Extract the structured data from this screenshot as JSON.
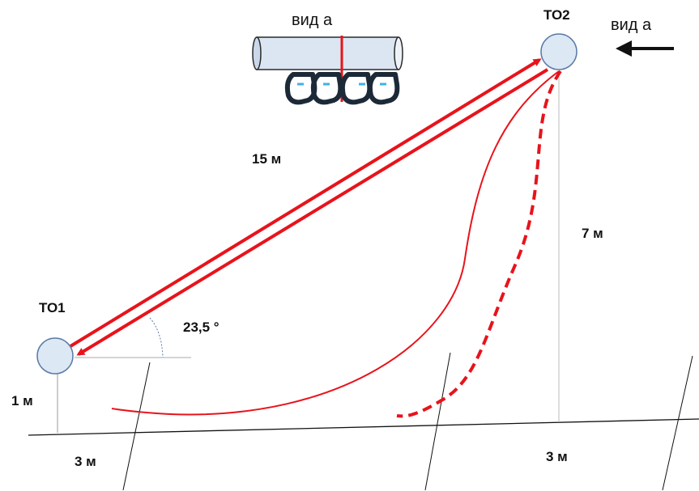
{
  "labels": {
    "view_a_top": "вид а",
    "view_a_right": "вид а",
    "to1": "ТО1",
    "to2": "ТО2",
    "length": "15 м",
    "height": "7 м",
    "angle": "23,5 °",
    "left_height": "1 м",
    "dist_left": "3 м",
    "dist_right": "3 м"
  },
  "colors": {
    "rope": "#e8131b",
    "node_fill": "#dde8f5",
    "node_stroke": "#5b7ba6",
    "pipe_fill": "#dbe6f2",
    "pipe_stroke": "#2a2a2a",
    "carabiner": "#1c2a38",
    "carabiner_accent": "#3fb2e6",
    "line": "#111111"
  },
  "icons": {
    "arrow": "arrow-left-icon",
    "carabiner": "carabiner-icon"
  }
}
